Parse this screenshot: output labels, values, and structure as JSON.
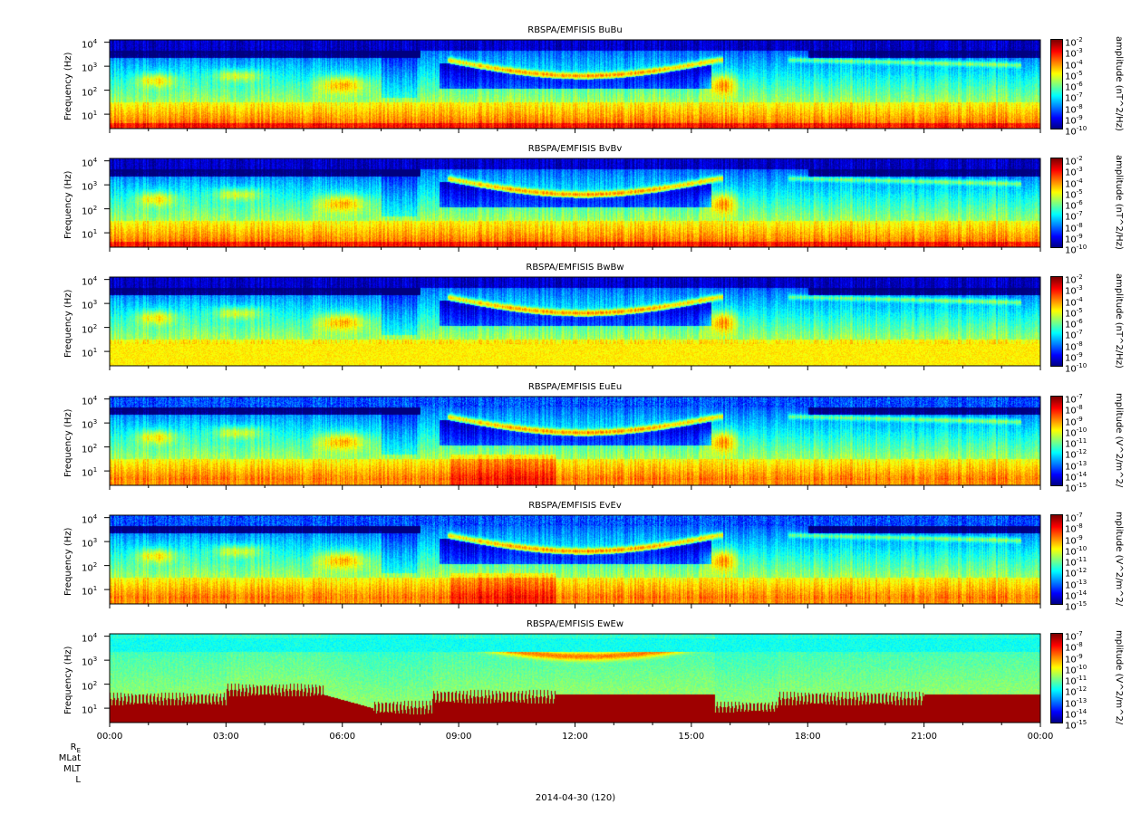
{
  "chart_data": [
    {
      "type": "heatmap",
      "title": "RBSPA/EMFISIS  BuBu",
      "ylabel": "Frequency (Hz)",
      "yscale": "log",
      "ytick_exponents": [
        1,
        2,
        3,
        4
      ],
      "colorbar_label": "amplitude (nT^2/Hz)",
      "colorbar_exponents": [
        -2,
        -3,
        -4,
        -5,
        -6,
        -7,
        -8,
        -9,
        -10
      ],
      "colormap": "jet",
      "kind": "B"
    },
    {
      "type": "heatmap",
      "title": "RBSPA/EMFISIS  BvBv",
      "ylabel": "Frequency (Hz)",
      "yscale": "log",
      "ytick_exponents": [
        1,
        2,
        3,
        4
      ],
      "colorbar_label": "amplitude (nT^2/Hz)",
      "colorbar_exponents": [
        -2,
        -3,
        -4,
        -5,
        -6,
        -7,
        -8,
        -9,
        -10
      ],
      "colormap": "jet",
      "kind": "B"
    },
    {
      "type": "heatmap",
      "title": "RBSPA/EMFISIS  BwBw",
      "ylabel": "Frequency (Hz)",
      "yscale": "log",
      "ytick_exponents": [
        1,
        2,
        3,
        4
      ],
      "colorbar_label": "amplitude (nT^2/Hz)",
      "colorbar_exponents": [
        -2,
        -3,
        -4,
        -5,
        -6,
        -7,
        -8,
        -9,
        -10
      ],
      "colormap": "jet",
      "kind": "Bw"
    },
    {
      "type": "heatmap",
      "title": "RBSPA/EMFISIS  EuEu",
      "ylabel": "Frequency (Hz)",
      "yscale": "log",
      "ytick_exponents": [
        1,
        2,
        3,
        4
      ],
      "colorbar_label": "mplitude (V^2/m^2/",
      "colorbar_exponents": [
        -7,
        -8,
        -9,
        -10,
        -11,
        -12,
        -13,
        -14,
        -15
      ],
      "colormap": "jet",
      "kind": "E"
    },
    {
      "type": "heatmap",
      "title": "RBSPA/EMFISIS  EvEv",
      "ylabel": "Frequency (Hz)",
      "yscale": "log",
      "ytick_exponents": [
        1,
        2,
        3,
        4
      ],
      "colorbar_label": "mplitude (V^2/m^2/",
      "colorbar_exponents": [
        -7,
        -8,
        -9,
        -10,
        -11,
        -12,
        -13,
        -14,
        -15
      ],
      "colormap": "jet",
      "kind": "E"
    },
    {
      "type": "heatmap",
      "title": "RBSPA/EMFISIS  EwEw",
      "ylabel": "Frequency (Hz)",
      "yscale": "log",
      "ytick_exponents": [
        1,
        2,
        3,
        4
      ],
      "colorbar_label": "mplitude (V^2/m^2/",
      "colorbar_exponents": [
        -7,
        -8,
        -9,
        -10,
        -11,
        -12,
        -13,
        -14,
        -15
      ],
      "colormap": "jet",
      "kind": "Ew"
    }
  ],
  "x_axis": {
    "ticks": [
      "00:00",
      "03:00",
      "06:00",
      "09:00",
      "12:00",
      "15:00",
      "18:00",
      "21:00",
      "00:00"
    ],
    "date_label": "2014-04-30 (120)"
  },
  "ephemeris_labels": [
    "R",
    "MLat",
    "MLT",
    "L"
  ],
  "ephemeris_subscript": "E"
}
